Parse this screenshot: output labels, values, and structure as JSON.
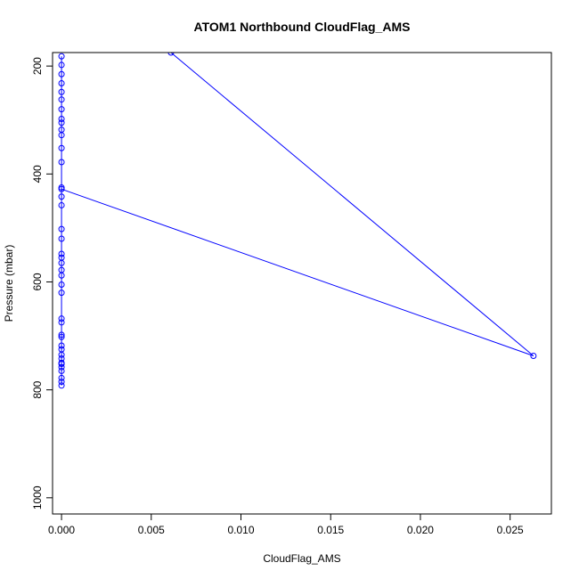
{
  "chart_data": {
    "type": "line",
    "title": "ATOM1 Northbound CloudFlag_AMS",
    "xlabel": "CloudFlag_AMS",
    "ylabel": "Pressure (mbar)",
    "xlim": [
      -0.0005,
      0.0273
    ],
    "ylim": [
      1030,
      175
    ],
    "y_reversed": true,
    "grid": false,
    "x_ticks": [
      {
        "value": 0.0,
        "label": "0.000"
      },
      {
        "value": 0.005,
        "label": "0.005"
      },
      {
        "value": 0.01,
        "label": "0.010"
      },
      {
        "value": 0.015,
        "label": "0.015"
      },
      {
        "value": 0.02,
        "label": "0.020"
      },
      {
        "value": 0.025,
        "label": "0.025"
      }
    ],
    "y_ticks": [
      {
        "value": 200,
        "label": "200"
      },
      {
        "value": 400,
        "label": "400"
      },
      {
        "value": 600,
        "label": "600"
      },
      {
        "value": 800,
        "label": "800"
      },
      {
        "value": 1000,
        "label": "1000"
      }
    ],
    "series": [
      {
        "color": "#0000ff",
        "marker": "open-circle",
        "points": [
          {
            "x": 0.0,
            "y": 182
          },
          {
            "x": 0.0,
            "y": 198
          },
          {
            "x": 0.0,
            "y": 215
          },
          {
            "x": 0.0,
            "y": 232
          },
          {
            "x": 0.0,
            "y": 248
          },
          {
            "x": 0.0,
            "y": 262
          },
          {
            "x": 0.0,
            "y": 280
          },
          {
            "x": 0.0,
            "y": 298
          },
          {
            "x": 0.0,
            "y": 305
          },
          {
            "x": 0.0,
            "y": 318
          },
          {
            "x": 0.0,
            "y": 328
          },
          {
            "x": 0.0,
            "y": 352
          },
          {
            "x": 0.0,
            "y": 378
          },
          {
            "x": 0.0,
            "y": 425
          },
          {
            "x": 0.0,
            "y": 442
          },
          {
            "x": 0.0,
            "y": 458
          },
          {
            "x": 0.0,
            "y": 502
          },
          {
            "x": 0.0,
            "y": 520
          },
          {
            "x": 0.0,
            "y": 548
          },
          {
            "x": 0.0,
            "y": 555
          },
          {
            "x": 0.0,
            "y": 565
          },
          {
            "x": 0.0,
            "y": 578
          },
          {
            "x": 0.0,
            "y": 588
          },
          {
            "x": 0.0,
            "y": 605
          },
          {
            "x": 0.0,
            "y": 620
          },
          {
            "x": 0.0,
            "y": 668
          },
          {
            "x": 0.0,
            "y": 675
          },
          {
            "x": 0.0,
            "y": 698
          },
          {
            "x": 0.0,
            "y": 702
          },
          {
            "x": 0.0,
            "y": 718
          },
          {
            "x": 0.0,
            "y": 725
          },
          {
            "x": 0.0,
            "y": 735
          },
          {
            "x": 0.0,
            "y": 742
          },
          {
            "x": 0.0,
            "y": 752
          },
          {
            "x": 0.0,
            "y": 758
          },
          {
            "x": 0.0,
            "y": 765
          },
          {
            "x": 0.0,
            "y": 778
          },
          {
            "x": 0.0,
            "y": 785
          },
          {
            "x": 0.0,
            "y": 792
          },
          {
            "x": 0.0,
            "y": 750
          },
          {
            "x": 0.0,
            "y": 428
          },
          {
            "x": 0.0263,
            "y": 737
          },
          {
            "x": 0.0061,
            "y": 175
          }
        ]
      }
    ]
  }
}
